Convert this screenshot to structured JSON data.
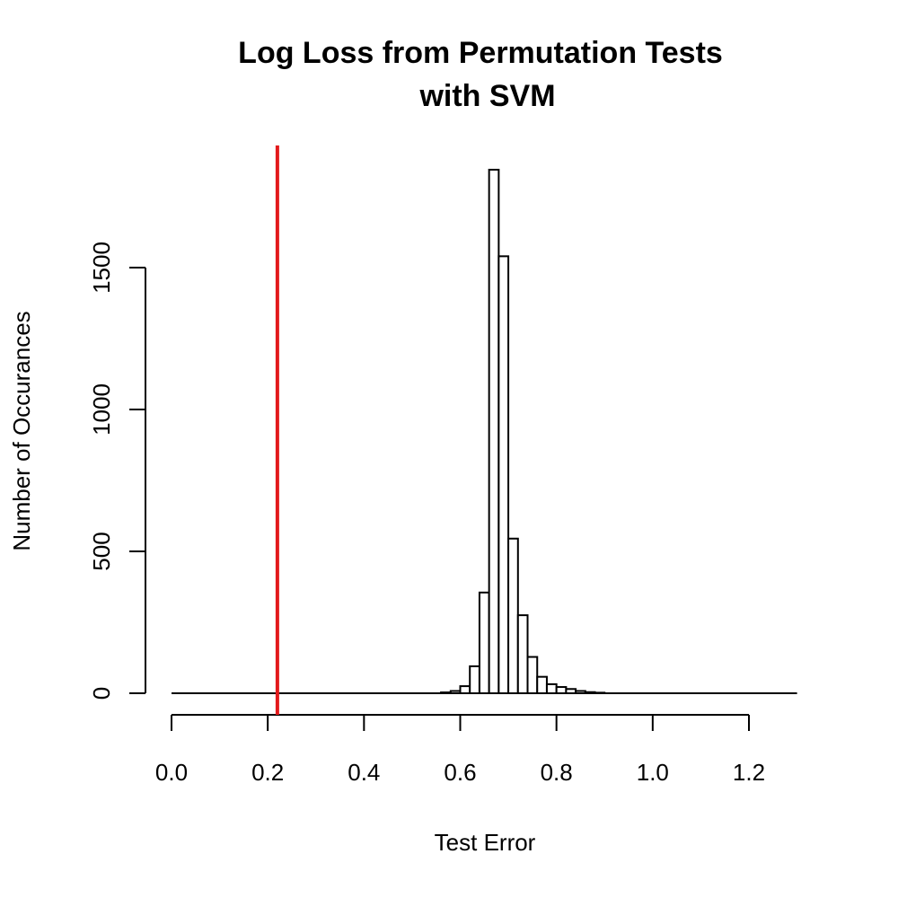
{
  "chart_data": {
    "type": "bar",
    "title": [
      "Log Loss from Permutation Tests",
      "with SVM"
    ],
    "xlabel": "Test Error",
    "ylabel": "Number of Occurances",
    "xlim": [
      0.0,
      1.3
    ],
    "ylim": [
      0,
      1900
    ],
    "x_ticks": [
      "0.0",
      "0.2",
      "0.4",
      "0.6",
      "0.8",
      "1.0",
      "1.2"
    ],
    "y_ticks": [
      "0",
      "500",
      "1000",
      "1500"
    ],
    "bin_width": 0.02,
    "bins": [
      {
        "start": 0.56,
        "count": 3
      },
      {
        "start": 0.58,
        "count": 8
      },
      {
        "start": 0.6,
        "count": 25
      },
      {
        "start": 0.62,
        "count": 95
      },
      {
        "start": 0.64,
        "count": 355
      },
      {
        "start": 0.66,
        "count": 1845
      },
      {
        "start": 0.68,
        "count": 1540
      },
      {
        "start": 0.7,
        "count": 545
      },
      {
        "start": 0.72,
        "count": 275
      },
      {
        "start": 0.74,
        "count": 128
      },
      {
        "start": 0.76,
        "count": 58
      },
      {
        "start": 0.78,
        "count": 32
      },
      {
        "start": 0.8,
        "count": 22
      },
      {
        "start": 0.82,
        "count": 15
      },
      {
        "start": 0.84,
        "count": 8
      },
      {
        "start": 0.86,
        "count": 4
      },
      {
        "start": 0.88,
        "count": 2
      }
    ],
    "baseline_range": [
      0.0,
      1.3
    ],
    "reference_line": {
      "x": 0.22,
      "color": "#e31a1c"
    },
    "grid": false,
    "legend": "none"
  }
}
